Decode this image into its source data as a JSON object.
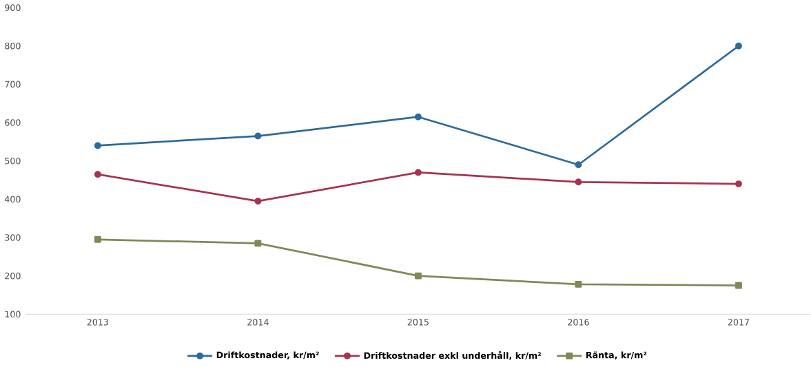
{
  "chart_data": {
    "type": "line",
    "categories": [
      "2013",
      "2014",
      "2015",
      "2016",
      "2017"
    ],
    "series": [
      {
        "name": "Driftkostnader, kr/m²",
        "color": "#2e6a9a",
        "marker": "circle",
        "values": [
          540,
          565,
          615,
          490,
          800
        ]
      },
      {
        "name": "Driftkostnader exkl underhåll, kr/m²",
        "color": "#a6334f",
        "marker": "circle",
        "values": [
          465,
          395,
          470,
          445,
          440
        ]
      },
      {
        "name": "Ränta, kr/m²",
        "color": "#7d8a55",
        "marker": "square",
        "values": [
          295,
          285,
          200,
          178,
          175
        ]
      }
    ],
    "ylim": [
      100,
      900
    ],
    "yticks": [
      100,
      200,
      300,
      400,
      500,
      600,
      700,
      800,
      900
    ],
    "legend": "bottom"
  }
}
